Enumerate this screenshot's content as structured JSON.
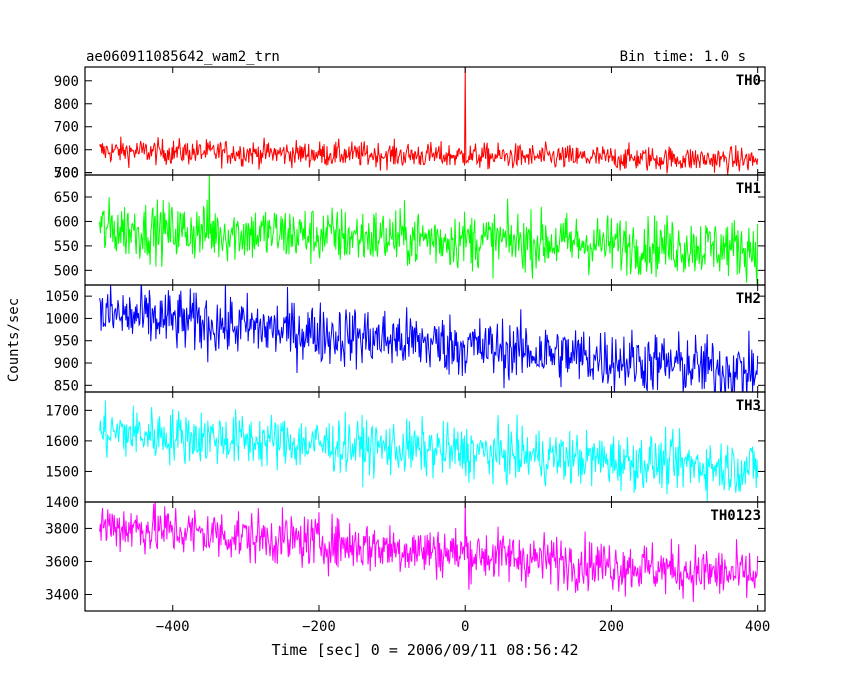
{
  "chart_data": {
    "type": "line",
    "title_left": "ae060911085642_wam2_trn",
    "title_right": "Bin time: 1.0 s",
    "xlabel": "Time [sec] 0 = 2006/09/11 08:56:42",
    "ylabel": "Counts/sec",
    "xlim": [
      -520,
      410
    ],
    "x_ticks": [
      -400,
      -200,
      0,
      200,
      400
    ],
    "x_tick_labels": [
      "−400",
      "−200",
      "0",
      "200",
      "400"
    ],
    "x_range": [
      -500,
      400
    ],
    "bin_time": 1.0,
    "panels": [
      {
        "name": "TH0",
        "color": "#ff0000",
        "ylim": [
          490,
          960
        ],
        "y_ticks": [
          500,
          600,
          700,
          800,
          900
        ],
        "y_tick_labels": [
          "500",
          "600",
          "700",
          "800",
          "900"
        ],
        "mean_start": 595,
        "mean_end": 555,
        "noise": 28,
        "spikes": [
          {
            "x": 0,
            "y": 960
          }
        ]
      },
      {
        "name": "TH1",
        "color": "#00ff00",
        "ylim": [
          470,
          695
        ],
        "y_ticks": [
          500,
          550,
          600,
          650,
          700
        ],
        "y_tick_labels": [
          "500",
          "550",
          "600",
          "650",
          "700"
        ],
        "mean_start": 585,
        "mean_end": 545,
        "noise": 30,
        "spikes": [
          {
            "x": -350,
            "y": 695
          }
        ]
      },
      {
        "name": "TH2",
        "color": "#0000ff",
        "ylim": [
          835,
          1075
        ],
        "y_ticks": [
          850,
          900,
          950,
          1000,
          1050
        ],
        "y_tick_labels": [
          "850",
          "900",
          "950",
          "1000",
          "1050"
        ],
        "mean_start": 1010,
        "mean_end": 880,
        "noise": 35,
        "spikes": []
      },
      {
        "name": "TH3",
        "color": "#00ffff",
        "ylim": [
          1400,
          1760
        ],
        "y_ticks": [
          1400,
          1500,
          1600,
          1700
        ],
        "y_tick_labels": [
          "1400",
          "1500",
          "1600",
          "1700"
        ],
        "mean_start": 1630,
        "mean_end": 1510,
        "noise": 45,
        "spikes": []
      },
      {
        "name": "TH0123",
        "color": "#ff00ff",
        "ylim": [
          3300,
          3960
        ],
        "y_ticks": [
          3400,
          3600,
          3800
        ],
        "y_tick_labels": [
          "3400",
          "3600",
          "3800"
        ],
        "mean_start": 3820,
        "mean_end": 3510,
        "noise": 80,
        "spikes": [
          {
            "x": 0,
            "y": 3960
          }
        ]
      }
    ]
  }
}
